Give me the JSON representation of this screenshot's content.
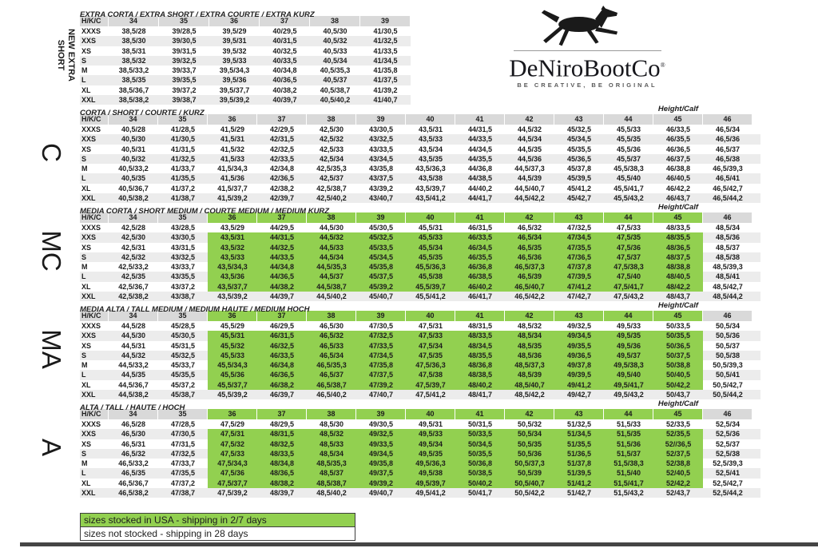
{
  "brand": {
    "name": "DeNiroBootCo",
    "registered_mark": "®",
    "tagline": "BE CREATIVE, BE ORIGINAL",
    "logo_icon": "horse-icon"
  },
  "labels": {
    "corner": "H/K/C",
    "height_calf": "Height/Calf"
  },
  "colors": {
    "stocked_green": "#92d050",
    "header_gray": "#d9d9d9",
    "stripe_gray": "#ececec"
  },
  "legend": [
    {
      "label": "sizes stocked in USA - shipping in 2/7 days",
      "stocked": true
    },
    {
      "label": "sizes not stocked - shipping in 28 days",
      "stocked": false
    }
  ],
  "sections": [
    {
      "id": "extra-short",
      "side_label": {
        "style": "small",
        "lines": [
          "NEW EXTRA",
          "SHORT"
        ]
      },
      "title": "EXTRA CORTA / EXTRA SHORT / EXTRA COURTE / EXTRA KURZ",
      "show_height_calf": false,
      "columns": [
        "34",
        "35",
        "36",
        "37",
        "38",
        "39"
      ],
      "green": null,
      "rows": [
        {
          "label": "XXXS",
          "values": [
            "38,5/28",
            "39/28,5",
            "39,5/29",
            "40/29,5",
            "40,5/30",
            "41/30,5"
          ]
        },
        {
          "label": "XXS",
          "values": [
            "38,5/30",
            "39/30,5",
            "39,5/31",
            "40/31,5",
            "40,5/32",
            "41/32,5"
          ]
        },
        {
          "label": "XS",
          "values": [
            "38,5/31",
            "39/31,5",
            "39,5/32",
            "40/32,5",
            "40,5/33",
            "41/33,5"
          ]
        },
        {
          "label": "S",
          "values": [
            "38,5/32",
            "39/32,5",
            "39,5/33",
            "40/33,5",
            "40,5/34",
            "41/34,5"
          ]
        },
        {
          "label": "M",
          "values": [
            "38,5/33,2",
            "39/33,7",
            "39,5/34,3",
            "40/34,8",
            "40,5/35,3",
            "41/35,8"
          ]
        },
        {
          "label": "L",
          "values": [
            "38,5/35",
            "39/35,5",
            "39,5/36",
            "40/36,5",
            "40,5/37",
            "41/37,5"
          ]
        },
        {
          "label": "XL",
          "values": [
            "38,5/36,7",
            "39/37,2",
            "39,5/37,7",
            "40/38,2",
            "40,5/38,7",
            "41/39,2"
          ]
        },
        {
          "label": "XXL",
          "values": [
            "38,5/38,2",
            "39/38,7",
            "39,5/39,2",
            "40/39,7",
            "40,5/40,2",
            "41/40,7"
          ]
        }
      ]
    },
    {
      "id": "corta",
      "side_label": {
        "style": "big",
        "lines": [
          "C"
        ]
      },
      "title": "CORTA / SHORT / COURTE / KURZ",
      "show_height_calf": true,
      "columns": [
        "34",
        "35",
        "36",
        "37",
        "38",
        "39",
        "40",
        "41",
        "42",
        "43",
        "44",
        "45",
        "46"
      ],
      "green": null,
      "rows": [
        {
          "label": "XXXS",
          "values": [
            "40,5/28",
            "41/28,5",
            "41,5/29",
            "42/29,5",
            "42,5/30",
            "43/30,5",
            "43,5/31",
            "44/31,5",
            "44,5/32",
            "45/32,5",
            "45,5/33",
            "46/33,5",
            "46,5/34"
          ]
        },
        {
          "label": "XXS",
          "values": [
            "40,5/30",
            "41/30,5",
            "41,5/31",
            "42/31,5",
            "42,5/32",
            "43/32,5",
            "43,5/33",
            "44/33,5",
            "44,5/34",
            "45/34,5",
            "45,5/35",
            "46/35,5",
            "46,5/36"
          ]
        },
        {
          "label": "XS",
          "values": [
            "40,5/31",
            "41/31,5",
            "41,5/32",
            "42/32,5",
            "42,5/33",
            "43/33,5",
            "43,5/34",
            "44/34,5",
            "44,5/35",
            "45/35,5",
            "45,5/36",
            "46/36,5",
            "46,5/37"
          ]
        },
        {
          "label": "S",
          "values": [
            "40,5/32",
            "41/32,5",
            "41,5/33",
            "42/33,5",
            "42,5/34",
            "43/34,5",
            "43,5/35",
            "44/35,5",
            "44,5/36",
            "45/36,5",
            "45,5/37",
            "46/37,5",
            "46,5/38"
          ]
        },
        {
          "label": "M",
          "values": [
            "40,5/33,2",
            "41/33,7",
            "41,5/34,3",
            "42/34,8",
            "42,5/35,3",
            "43/35,8",
            "43,5/36,3",
            "44/36,8",
            "44,5/37,3",
            "45/37,8",
            "45,5/38,3",
            "46/38,8",
            "46,5/39,3"
          ]
        },
        {
          "label": "L",
          "values": [
            "40,5/35",
            "41/35,5",
            "41,5/36",
            "42/36,5",
            "42,5/37",
            "43/37,5",
            "43,5/38",
            "44/38,5",
            "44,5/39",
            "45/39,5",
            "45,5/40",
            "46/40,5",
            "46,5/41"
          ]
        },
        {
          "label": "XL",
          "values": [
            "40,5/36,7",
            "41/37,2",
            "41,5/37,7",
            "42/38,2",
            "42,5/38,7",
            "43/39,2",
            "43,5/39,7",
            "44/40,2",
            "44,5/40,7",
            "45/41,2",
            "45,5/41,7",
            "46/42,2",
            "46,5/42,7"
          ]
        },
        {
          "label": "XXL",
          "values": [
            "40,5/38,2",
            "41/38,7",
            "41,5/39,2",
            "42/39,7",
            "42,5/40,2",
            "43/40,7",
            "43,5/41,2",
            "44/41,7",
            "44,5/42,2",
            "45/42,7",
            "45,5/43,2",
            "46/43,7",
            "46,5/44,2"
          ]
        }
      ]
    },
    {
      "id": "media-corta",
      "side_label": {
        "style": "big",
        "lines": [
          "MC"
        ]
      },
      "title": "MEDIA CORTA / SHORT MEDIUM / COURTE MEDIUM / MEDIUM KURZ",
      "show_height_calf": true,
      "columns": [
        "34",
        "35",
        "36",
        "37",
        "38",
        "39",
        "40",
        "41",
        "42",
        "43",
        "44",
        "45",
        "46"
      ],
      "green": {
        "col_start": 2,
        "col_end": 11,
        "row_start": 1,
        "row_end": 6
      },
      "rows": [
        {
          "label": "XXXS",
          "values": [
            "42,5/28",
            "43/28,5",
            "43,5/29",
            "44/29,5",
            "44,5/30",
            "45/30,5",
            "45,5/31",
            "46/31,5",
            "46,5/32",
            "47/32,5",
            "47,5/33",
            "48/33,5",
            "48,5/34"
          ]
        },
        {
          "label": "XXS",
          "values": [
            "42,5/30",
            "43/30,5",
            "43,5/31",
            "44/31,5",
            "44,5/32",
            "45/32,5",
            "45,5/33",
            "46/33,5",
            "46,5/34",
            "47/34,5",
            "47,5/35",
            "48/35,5",
            "48,5/36"
          ]
        },
        {
          "label": "XS",
          "values": [
            "42,5/31",
            "43/31,5",
            "43,5/32",
            "44/32,5",
            "44,5/33",
            "45/33,5",
            "45,5/34",
            "46/34,5",
            "46,5/35",
            "47/35,5",
            "47,5/36",
            "48/36,5",
            "48,5/37"
          ]
        },
        {
          "label": "S",
          "values": [
            "42,5/32",
            "43/32,5",
            "43,5/33",
            "44/33,5",
            "44,5/34",
            "45/34,5",
            "45,5/35",
            "46/35,5",
            "46,5/36",
            "47/36,5",
            "47,5/37",
            "48/37,5",
            "48,5/38"
          ]
        },
        {
          "label": "M",
          "values": [
            "42,5/33,2",
            "43/33,7",
            "43,5/34,3",
            "44/34,8",
            "44,5/35,3",
            "45/35,8",
            "45,5/36,3",
            "46/36,8",
            "46,5/37,3",
            "47/37,8",
            "47,5/38,3",
            "48/38,8",
            "48,5/39,3"
          ]
        },
        {
          "label": "L",
          "values": [
            "42,5/35",
            "43/35,5",
            "43,5/36",
            "44/36,5",
            "44,5/37",
            "45/37,5",
            "45,5/38",
            "46/38,5",
            "46,5/39",
            "47/39,5",
            "47,5/40",
            "48/40,5",
            "48,5/41"
          ]
        },
        {
          "label": "XL",
          "values": [
            "42,5/36,7",
            "43/37,2",
            "43,5/37,7",
            "44/38,2",
            "44,5/38,7",
            "45/39,2",
            "45,5/39,7",
            "46/40,2",
            "46,5/40,7",
            "47/41,2",
            "47,5/41,7",
            "48/42,2",
            "48,5/42,7"
          ]
        },
        {
          "label": "XXL",
          "values": [
            "42,5/38,2",
            "43/38,7",
            "43,5/39,2",
            "44/39,7",
            "44,5/40,2",
            "45/40,7",
            "45,5/41,2",
            "46/41,7",
            "46,5/42,2",
            "47/42,7",
            "47,5/43,2",
            "48/43,7",
            "48,5/44,2"
          ]
        }
      ]
    },
    {
      "id": "media-alta",
      "side_label": {
        "style": "big",
        "lines": [
          "MA"
        ]
      },
      "title": "MEDIA ALTA / TALL MEDIUM / MEDIUM HAUTE / MEDIUM HOCH",
      "show_height_calf": true,
      "columns": [
        "34",
        "35",
        "36",
        "37",
        "38",
        "39",
        "40",
        "41",
        "42",
        "43",
        "44",
        "45",
        "46"
      ],
      "green": {
        "col_start": 2,
        "col_end": 11,
        "row_start": 1,
        "row_end": 6
      },
      "rows": [
        {
          "label": "XXXS",
          "values": [
            "44,5/28",
            "45/28,5",
            "45,5/29",
            "46/29,5",
            "46,5/30",
            "47/30,5",
            "47,5/31",
            "48/31,5",
            "48,5/32",
            "49/32,5",
            "49,5/33",
            "50/33,5",
            "50,5/34"
          ]
        },
        {
          "label": "XXS",
          "values": [
            "44,5/30",
            "45/30,5",
            "45,5/31",
            "46/31,5",
            "46,5/32",
            "47/32,5",
            "47,5/33",
            "48/33,5",
            "48,5/34",
            "49/34,5",
            "49,5/35",
            "50/35,5",
            "50,5/36"
          ]
        },
        {
          "label": "XS",
          "values": [
            "44,5/31",
            "45/31,5",
            "45,5/32",
            "46/32,5",
            "46,5/33",
            "47/33,5",
            "47,5/34",
            "48/34,5",
            "48,5/35",
            "49/35,5",
            "49,5/36",
            "50/36,5",
            "50,5/37"
          ]
        },
        {
          "label": "S",
          "values": [
            "44,5/32",
            "45/32,5",
            "45,5/33",
            "46/33,5",
            "46,5/34",
            "47/34,5",
            "47,5/35",
            "48/35,5",
            "48,5/36",
            "49/36,5",
            "49,5/37",
            "50/37,5",
            "50,5/38"
          ]
        },
        {
          "label": "M",
          "values": [
            "44,5/33,2",
            "45/33,7",
            "45,5/34,3",
            "46/34,8",
            "46,5/35,3",
            "47/35,8",
            "47,5/36,3",
            "48/36,8",
            "48,5/37,3",
            "49/37,8",
            "49,5/38,3",
            "50/38,8",
            "50,5/39,3"
          ]
        },
        {
          "label": "L",
          "values": [
            "44,5/35",
            "45/35,5",
            "45,5/36",
            "46/36,5",
            "46,5/37",
            "47/37,5",
            "47,5/38",
            "48/38,5",
            "48,5/39",
            "49/39,5",
            "49,5/40",
            "50/40,5",
            "50,5/41"
          ]
        },
        {
          "label": "XL",
          "values": [
            "44,5/36,7",
            "45/37,2",
            "45,5/37,7",
            "46/38,2",
            "46,5/38,7",
            "47/39,2",
            "47,5/39,7",
            "48/40,2",
            "48,5/40,7",
            "49/41,2",
            "49,5/41,7",
            "50/42,2",
            "50,5/42,7"
          ]
        },
        {
          "label": "XXL",
          "values": [
            "44,5/38,2",
            "45/38,7",
            "45,5/39,2",
            "46/39,7",
            "46,5/40,2",
            "47/40,7",
            "47,5/41,2",
            "48/41,7",
            "48,5/42,2",
            "49/42,7",
            "49,5/43,2",
            "50/43,7",
            "50,5/44,2"
          ]
        }
      ]
    },
    {
      "id": "alta",
      "side_label": {
        "style": "big",
        "lines": [
          "A"
        ]
      },
      "title": "ALTA / TALL / HAUTE / HOCH",
      "show_height_calf": true,
      "columns": [
        "34",
        "35",
        "36",
        "37",
        "38",
        "39",
        "40",
        "41",
        "42",
        "43",
        "44",
        "45",
        "46"
      ],
      "green": {
        "col_start": 2,
        "col_end": 11,
        "row_start": 1,
        "row_end": 6
      },
      "rows": [
        {
          "label": "XXXS",
          "values": [
            "46,5/28",
            "47/28,5",
            "47,5/29",
            "48/29,5",
            "48,5/30",
            "49/30,5",
            "49,5/31",
            "50/31,5",
            "50,5/32",
            "51/32,5",
            "51,5/33",
            "52/33,5",
            "52,5/34"
          ]
        },
        {
          "label": "XXS",
          "values": [
            "46,5/30",
            "47/30,5",
            "47,5/31",
            "48/31,5",
            "48,5/32",
            "49/32,5",
            "49,5/33",
            "50/33,5",
            "50,5/34",
            "51/34,5",
            "51,5/35",
            "52/35,5",
            "52,5/36"
          ]
        },
        {
          "label": "XS",
          "values": [
            "46,5/31",
            "47/31,5",
            "47,5/32",
            "48/32,5",
            "48,5/33",
            "49/33,5",
            "49,5/34",
            "50/34,5",
            "50,5/35",
            "51/35,5",
            "51,5/36",
            "52//36,5",
            "52,5/37"
          ]
        },
        {
          "label": "S",
          "values": [
            "46,5/32",
            "47/32,5",
            "47,5/33",
            "48/33,5",
            "48,5/34",
            "49/34,5",
            "49,5/35",
            "50/35,5",
            "50,5/36",
            "51/36,5",
            "51,5/37",
            "52/37,5",
            "52,5/38"
          ]
        },
        {
          "label": "M",
          "values": [
            "46,5/33,2",
            "47/33,7",
            "47,5/34,3",
            "48/34,8",
            "48,5/35,3",
            "49/35,8",
            "49,5/36,3",
            "50/36,8",
            "50,5/37,3",
            "51/37,8",
            "51,5/38,3",
            "52/38,8",
            "52,5/39,3"
          ]
        },
        {
          "label": "L",
          "values": [
            "46,5/35",
            "47/35,5",
            "47,5/36",
            "48/36,5",
            "48,5/37",
            "49/37,5",
            "49,5/38",
            "50/38,5",
            "50,5/39",
            "51/39,5",
            "51,5/40",
            "52/40,5",
            "52,5/41"
          ]
        },
        {
          "label": "XL",
          "values": [
            "46,5/36,7",
            "47/37,2",
            "47,5/37,7",
            "48/38,2",
            "48,5/38,7",
            "49/39,2",
            "49,5/39,7",
            "50/40,2",
            "50,5/40,7",
            "51/41,2",
            "51,5/41,7",
            "52/42,2",
            "52,5/42,7"
          ]
        },
        {
          "label": "XXL",
          "values": [
            "46,5/38,2",
            "47/38,7",
            "47,5/39,2",
            "48/39,7",
            "48,5/40,2",
            "49/40,7",
            "49,5/41,2",
            "50/41,7",
            "50,5/42,2",
            "51/42,7",
            "51,5/43,2",
            "52/43,7",
            "52,5/44,2"
          ]
        }
      ]
    }
  ]
}
